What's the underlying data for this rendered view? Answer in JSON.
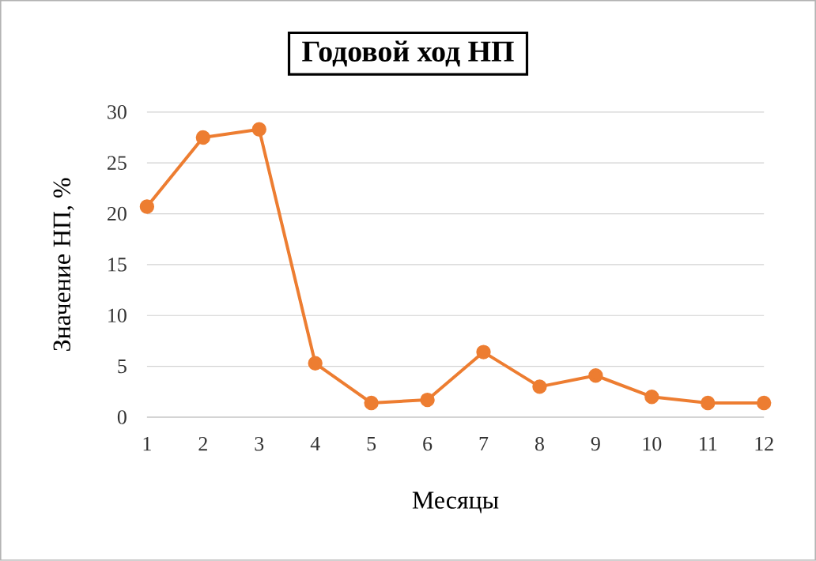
{
  "chart_data": {
    "type": "line",
    "title": "Годовой ход НП",
    "xlabel": "Месяцы",
    "ylabel": "Значение НП, %",
    "x": [
      1,
      2,
      3,
      4,
      5,
      6,
      7,
      8,
      9,
      10,
      11,
      12
    ],
    "series": [
      {
        "color": "#ed7d31",
        "values": [
          20.7,
          27.5,
          28.3,
          5.3,
          1.4,
          1.7,
          6.4,
          3.0,
          4.1,
          2.0,
          1.4,
          1.4
        ]
      }
    ],
    "xlim": [
      1,
      12
    ],
    "xticks": [
      1,
      2,
      3,
      4,
      5,
      6,
      7,
      8,
      9,
      10,
      11,
      12
    ],
    "ylim": [
      0,
      30
    ],
    "yticks": [
      0,
      5,
      10,
      15,
      20,
      25,
      30
    ],
    "grid": "y",
    "marker": "circle",
    "line_style": "solid"
  }
}
